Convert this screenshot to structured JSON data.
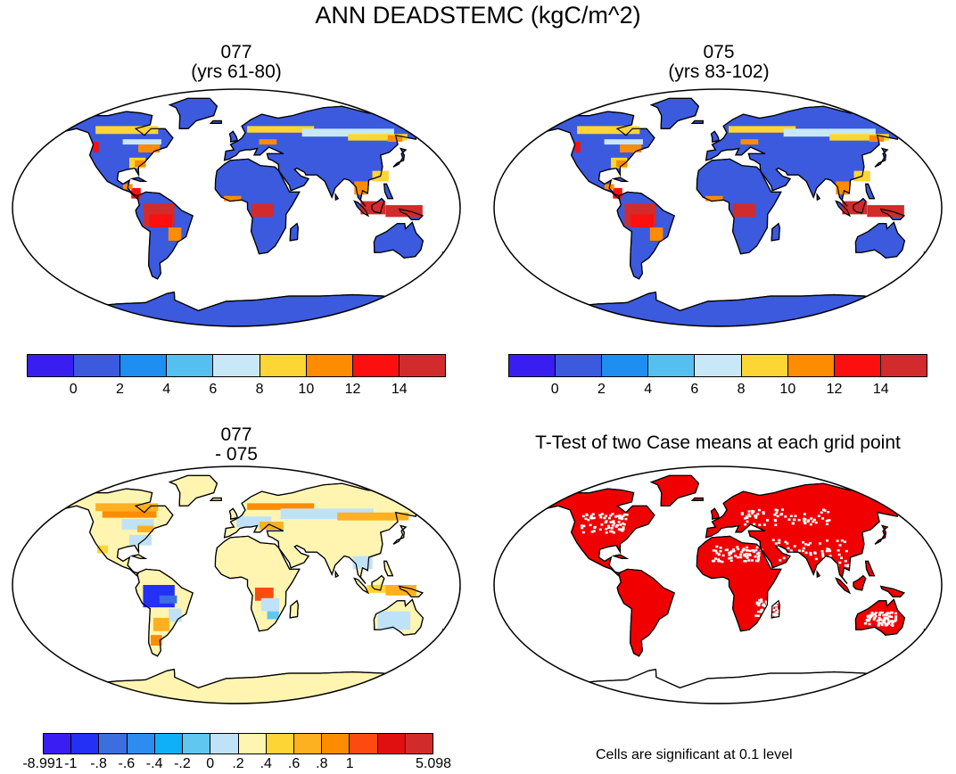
{
  "title": "ANN DEADSTEMC (kgC/m^2)",
  "panels": {
    "p1": {
      "title_line1": "077",
      "title_line2": "(yrs 61-80)"
    },
    "p2": {
      "title_line1": "075",
      "title_line2": "(yrs 83-102)"
    },
    "p3": {
      "title_line1": "077",
      "title_line2": "- 075"
    },
    "p4": {
      "title_line1": "T-Test of two Case means at each grid point"
    }
  },
  "colorbar_abs": {
    "colors": [
      "#3a1df0",
      "#3b5ade",
      "#1e8ef0",
      "#55c0f0",
      "#c8e8f8",
      "#fdd535",
      "#fd8c00",
      "#fb0f0f",
      "#d22b2b"
    ],
    "ticks": [
      "0",
      "2",
      "4",
      "6",
      "8",
      "10",
      "12",
      "14"
    ]
  },
  "colorbar_diff": {
    "colors": [
      "#3a1df0",
      "#2430f5",
      "#3c6ee0",
      "#2e8cf0",
      "#10b0f8",
      "#60c8f0",
      "#c0e2f8",
      "#fff5b0",
      "#fdd535",
      "#fdb020",
      "#fd8c00",
      "#fd4a10",
      "#e01010",
      "#d22b2b"
    ],
    "ticks": [
      "-8.991",
      "-1",
      "-.8",
      "-.6",
      "-.4",
      "-.2",
      "0",
      ".2",
      ".4",
      ".6",
      ".8",
      "1",
      "5.098"
    ]
  },
  "significance_note": "Cells are significant at 0.1 level",
  "colors": {
    "land_abs_base": "#3b5ade",
    "land_diff_base": "#fff5b0",
    "signif": "#f00000"
  }
}
